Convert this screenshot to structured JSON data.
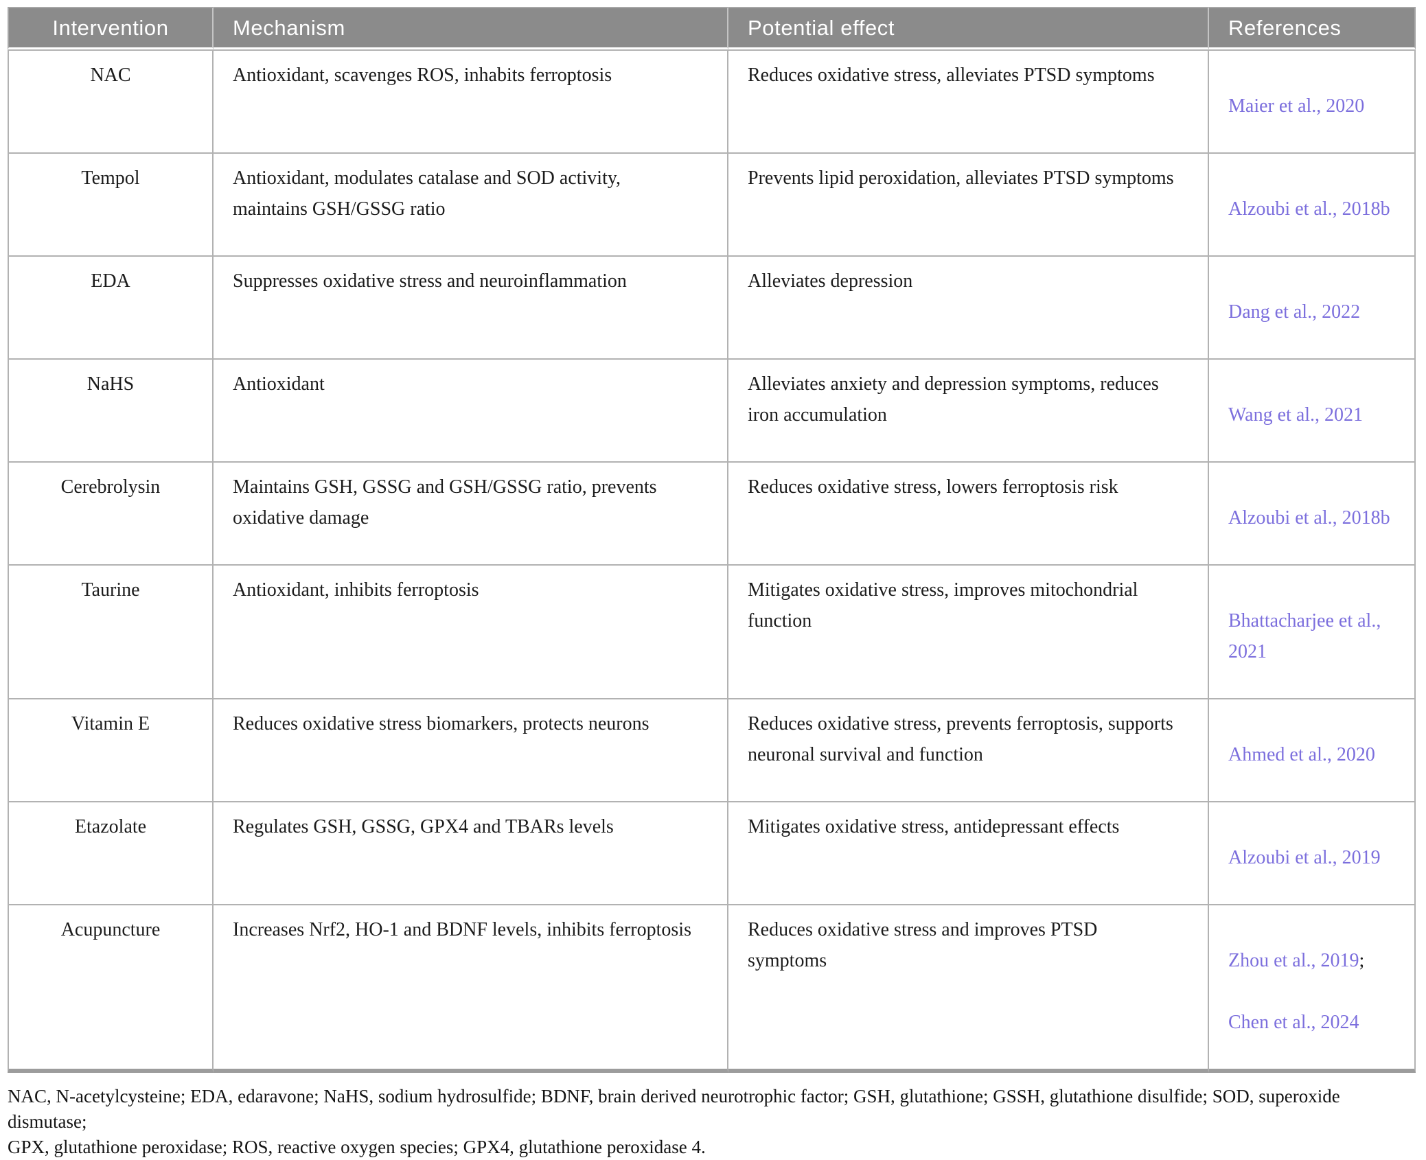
{
  "colors": {
    "header_bg": "#8b8b8b",
    "header_text": "#ffffff",
    "body_text": "#1c1c1c",
    "link": "#7c6fdd",
    "border": "#b2b2b2"
  },
  "table": {
    "columns": [
      {
        "label": "Intervention"
      },
      {
        "label": "Mechanism"
      },
      {
        "label": "Potential effect"
      },
      {
        "label": "References"
      }
    ],
    "rows": [
      {
        "intervention": "NAC",
        "mechanism": "Antioxidant, scavenges ROS, inhabits ferroptosis",
        "effect": "Reduces oxidative stress, alleviates PTSD symptoms",
        "refs": [
          {
            "text": "Maier et al., 2020",
            "sep": ""
          }
        ]
      },
      {
        "intervention": "Tempol",
        "mechanism": "Antioxidant, modulates catalase and SOD activity,\nmaintains GSH/GSSG ratio",
        "effect": "Prevents lipid peroxidation, alleviates PTSD symptoms",
        "refs": [
          {
            "text": "Alzoubi et al., 2018b",
            "sep": ""
          }
        ]
      },
      {
        "intervention": "EDA",
        "mechanism": "Suppresses oxidative stress and neuroinflammation",
        "effect": "Alleviates depression",
        "refs": [
          {
            "text": "Dang et al., 2022",
            "sep": ""
          }
        ]
      },
      {
        "intervention": "NaHS",
        "mechanism": "Antioxidant",
        "effect": "Alleviates anxiety and depression symptoms, reduces\niron accumulation",
        "refs": [
          {
            "text": "Wang et al., 2021",
            "sep": ""
          }
        ]
      },
      {
        "intervention": "Cerebrolysin",
        "mechanism": "Maintains GSH, GSSG and GSH/GSSG ratio, prevents\noxidative damage",
        "effect": "Reduces oxidative stress, lowers ferroptosis risk",
        "refs": [
          {
            "text": "Alzoubi et al., 2018b",
            "sep": ""
          }
        ]
      },
      {
        "intervention": "Taurine",
        "mechanism": "Antioxidant, inhibits ferroptosis",
        "effect": "Mitigates oxidative stress, improves mitochondrial\nfunction",
        "refs": [
          {
            "text": "Bhattacharjee et al.,\n2021",
            "sep": ""
          }
        ]
      },
      {
        "intervention": "Vitamin E",
        "mechanism": "Reduces oxidative stress biomarkers, protects neurons",
        "effect": "Reduces oxidative stress, prevents ferroptosis, supports\nneuronal survival and function",
        "refs": [
          {
            "text": "Ahmed et al., 2020",
            "sep": ""
          }
        ]
      },
      {
        "intervention": "Etazolate",
        "mechanism": "Regulates GSH, GSSG, GPX4 and TBARs levels",
        "effect": "Mitigates oxidative stress, antidepressant effects",
        "refs": [
          {
            "text": "Alzoubi et al., 2019",
            "sep": ""
          }
        ]
      },
      {
        "intervention": "Acupuncture",
        "mechanism": "Increases Nrf2, HO-1 and BDNF levels, inhibits ferroptosis",
        "effect": "Reduces oxidative stress and improves PTSD\nsymptoms",
        "refs": [
          {
            "text": "Zhou et al., 2019",
            "sep": ";"
          },
          {
            "text": "Chen et al., 2024",
            "sep": ""
          }
        ]
      }
    ]
  },
  "footnote": {
    "text": "NAC, N-acetylcysteine; EDA, edaravone; NaHS, sodium hydrosulfide; BDNF, brain derived neurotrophic factor; GSH, glutathione; GSSH, glutathione disulfide; SOD, superoxide dismutase;\nGPX, glutathione peroxidase; ROS, reactive oxygen species; GPX4, glutathione peroxidase 4."
  }
}
